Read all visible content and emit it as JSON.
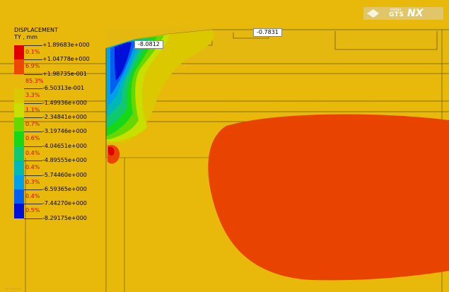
{
  "legend": {
    "title": "DISPLACEMENT",
    "subtitle": "TY , mm",
    "values": [
      "+1.89683e+000",
      "+1.04778e+000",
      "+1.98735e-001",
      "-6.50313e-001",
      "-1.49936e+000",
      "-2.34841e+000",
      "-3.19746e+000",
      "-4.04651e+000",
      "-4.89555e+000",
      "-5.74460e+000",
      "-6.59365e+000",
      "-7.44270e+000",
      "-8.29175e+000"
    ],
    "percents": [
      "0.1%",
      "6.9%",
      "85.3%",
      "3.3%",
      "1.1%",
      "0.7%",
      "0.6%",
      "0.4%",
      "0.4%",
      "0.3%",
      "0.4%",
      "0.5%"
    ],
    "colors": [
      "#e00000",
      "#ee4800",
      "#e8b80a",
      "#dcc800",
      "#c8e000",
      "#66d800",
      "#16d818",
      "#10c870",
      "#00b8b8",
      "#00a0e8",
      "#0060f0",
      "#0010d8"
    ]
  },
  "callouts": {
    "max_settlement": "-8.0812",
    "surface_settlement": "-0.7831"
  },
  "logo": {
    "small": "midas",
    "gts": "GTS",
    "nx": "NX"
  },
  "footer": {
    "text": "·· · ·· ·· ··"
  }
}
